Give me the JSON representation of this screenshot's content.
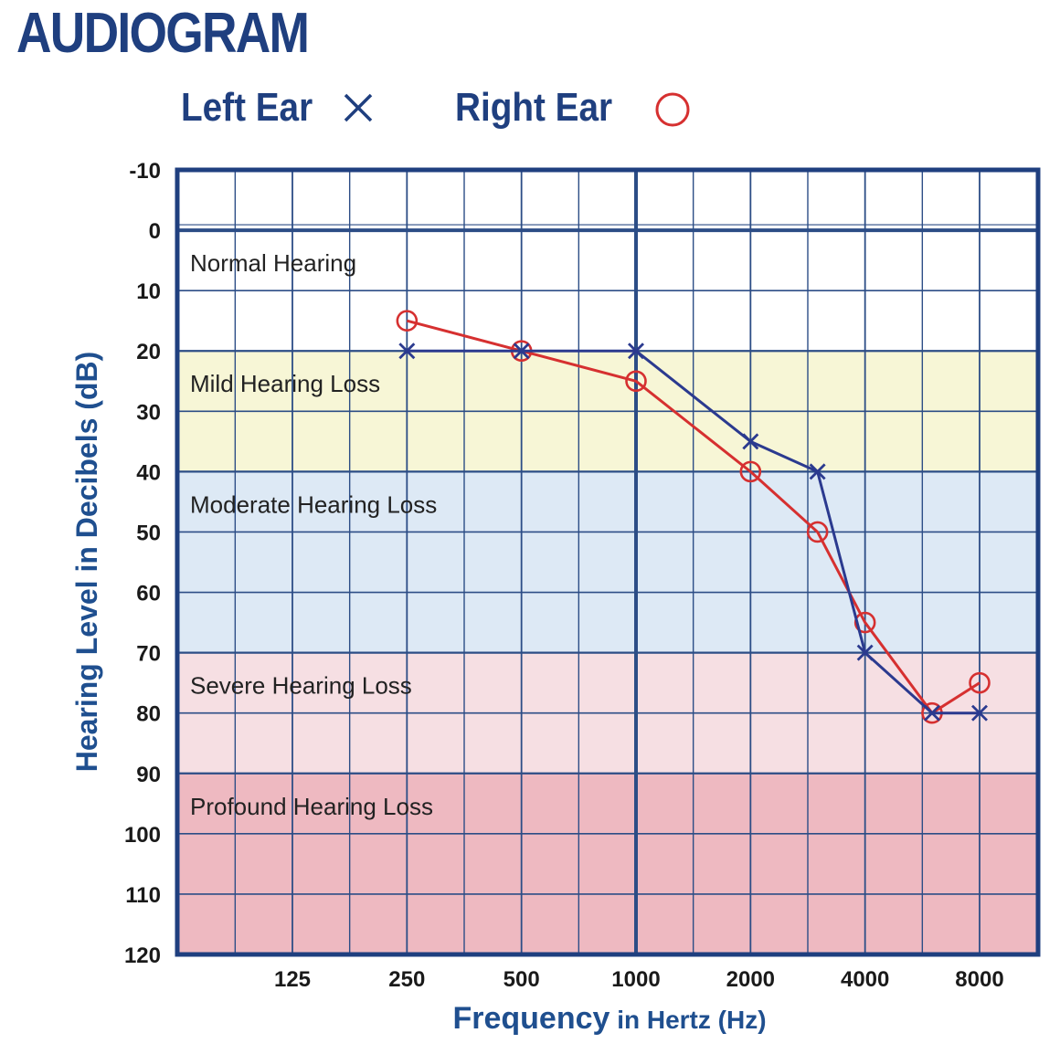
{
  "chart_data": {
    "type": "line",
    "title": "AUDIOGRAM",
    "xlabel_main": "Frequency",
    "xlabel_rest": " in Hertz (Hz)",
    "ylabel": "Hearing Level in Decibels (dB)",
    "x_scale": "log2",
    "y_inverted": true,
    "ylim": [
      -10,
      120
    ],
    "y_ticks": [
      -10,
      0,
      10,
      20,
      30,
      40,
      50,
      60,
      70,
      80,
      90,
      100,
      110,
      120
    ],
    "x_ticks": [
      125,
      250,
      500,
      1000,
      2000,
      4000,
      8000
    ],
    "x_tick_labels": [
      "125",
      "250",
      "500",
      "1000",
      "2000",
      "4000",
      "8000"
    ],
    "grid": true,
    "zones": [
      {
        "label": "Normal Hearing",
        "from": 0,
        "to": 20,
        "color": "#ffffff"
      },
      {
        "label": "Mild Hearing Loss",
        "from": 20,
        "to": 40,
        "color": "#f7f6d6"
      },
      {
        "label": "Moderate Hearing Loss",
        "from": 40,
        "to": 70,
        "color": "#dde9f5"
      },
      {
        "label": "Severe Hearing Loss",
        "from": 70,
        "to": 90,
        "color": "#f6dfe3"
      },
      {
        "label": "Profound Hearing Loss",
        "from": 90,
        "to": 120,
        "color": "#eeb9c1"
      }
    ],
    "series": [
      {
        "name": "Left Ear",
        "marker": "x",
        "color": "#2b3a8f",
        "x": [
          250,
          500,
          1000,
          2000,
          3000,
          4000,
          6000,
          8000
        ],
        "y": [
          20,
          20,
          20,
          35,
          40,
          70,
          80,
          80
        ]
      },
      {
        "name": "Right Ear",
        "marker": "o",
        "color": "#d63030",
        "x": [
          250,
          500,
          1000,
          2000,
          3000,
          4000,
          6000,
          8000
        ],
        "y": [
          15,
          20,
          25,
          40,
          50,
          65,
          80,
          75
        ]
      }
    ]
  },
  "colors": {
    "title": "#1f3f7f",
    "axis_title": "#1f4f8f",
    "frame": "#1f3f7f",
    "grid": "#2c4d86"
  }
}
